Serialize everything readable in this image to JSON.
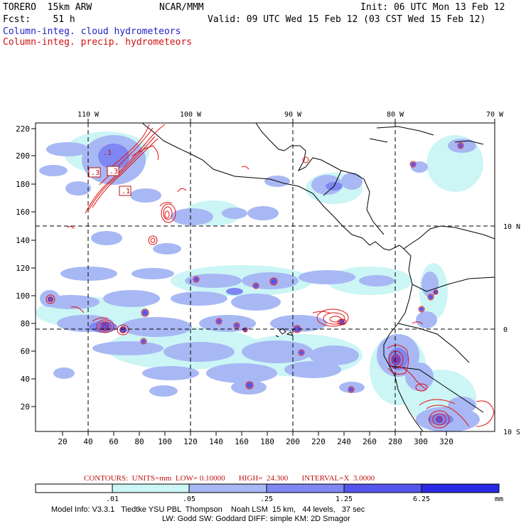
{
  "header": {
    "model": "TORERO  15km ARW",
    "org": "NCAR/MMM",
    "init": "Init: 06 UTC Mon 13 Feb 12",
    "fcst": "Fcst:    51 h",
    "valid": "Valid: 09 UTC Wed 15 Feb 12 (03 CST Wed 15 Feb 12)",
    "field_cloud": "Column-integ. cloud hydrometeors",
    "field_precip": "Column-integ. precip. hydrometeors"
  },
  "map": {
    "lon_labels": [
      "110 W",
      "100 W",
      "90 W",
      "80 W",
      "70 W"
    ],
    "lat_labels": [
      "10 N",
      "0",
      "10 S"
    ],
    "y_ticks": [
      "220",
      "200",
      "180",
      "160",
      "140",
      "120",
      "100",
      "80",
      "60",
      "40",
      "20"
    ],
    "x_ticks": [
      "20",
      "40",
      "60",
      "80",
      "100",
      "120",
      "140",
      "160",
      "180",
      "200",
      "220",
      "240",
      "260",
      "280",
      "300",
      "320"
    ],
    "contour_labels": [
      ".3",
      ".3",
      ".1",
      ".1"
    ]
  },
  "legend": {
    "contours_text": "CONTOURS:  UNITS=mm  LOW= 0.10000       HIGH=  24.300       INTERVAL=X  3.0000",
    "tick_labels": [
      ".01",
      ".05",
      ".25",
      "1.25",
      "6.25"
    ],
    "unit": "mm",
    "colors": [
      "#ffffff",
      "#ccf5f5",
      "#a8b8f4",
      "#7f87f2",
      "#5555ec",
      "#2a2ae6"
    ]
  },
  "footer": {
    "line1": "Model Info: V3.3.1   Tiedtke YSU PBL  Thompson    Noah LSM  15 km,   44 levels,   37 sec",
    "line2": "LW: Godd SW: Goddard DIFF: simple KM: 2D Smagor"
  },
  "colors": {
    "cloud_text": "#2020c8",
    "precip_text": "#d01010",
    "contour": "#e01010",
    "coast": "#000000"
  }
}
